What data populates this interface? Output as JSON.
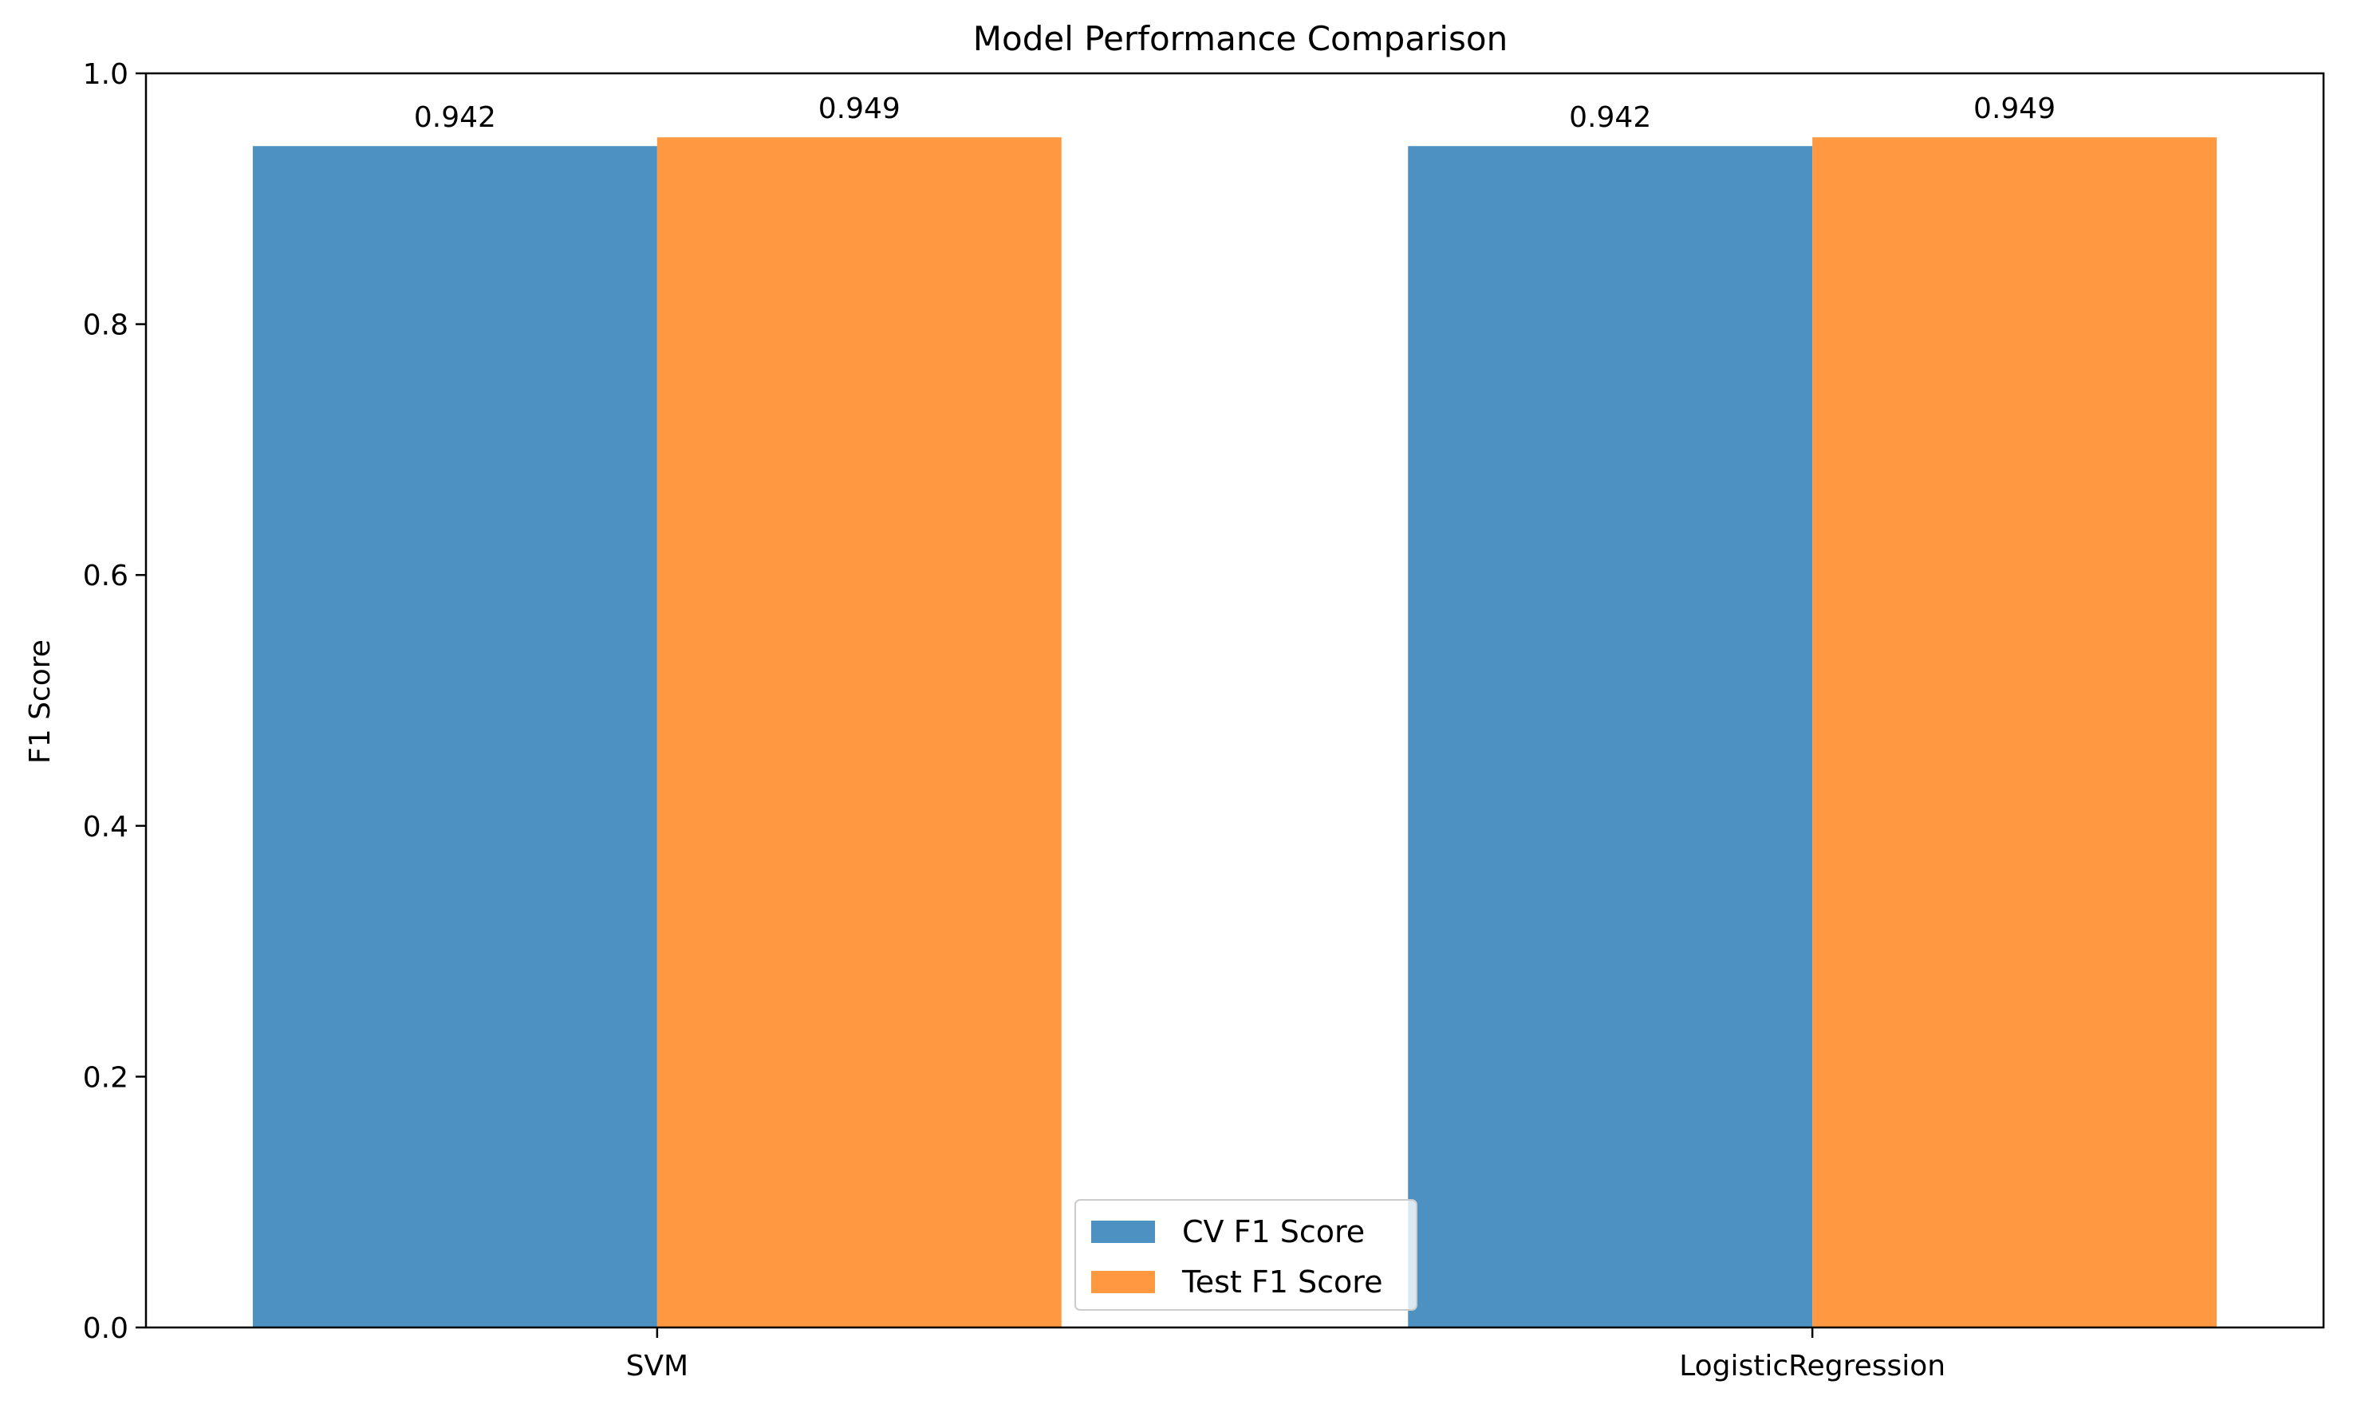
{
  "chart_data": {
    "type": "bar",
    "title": "Model Performance Comparison",
    "xlabel": "",
    "ylabel": "F1 Score",
    "categories": [
      "SVM",
      "LogisticRegression"
    ],
    "series": [
      {
        "name": "CV F1 Score",
        "values": [
          0.942,
          0.942
        ],
        "labels": [
          "0.942",
          "0.942"
        ],
        "color": "#4c91c2"
      },
      {
        "name": "Test F1 Score",
        "values": [
          0.949,
          0.949
        ],
        "labels": [
          "0.949",
          "0.949"
        ],
        "color": "#ff9941"
      }
    ],
    "ylim": [
      0,
      1.0
    ],
    "yticks": [
      "0.0",
      "0.2",
      "0.4",
      "0.6",
      "0.8",
      "1.0"
    ],
    "grid": false,
    "legend_position": "bottom-center"
  }
}
